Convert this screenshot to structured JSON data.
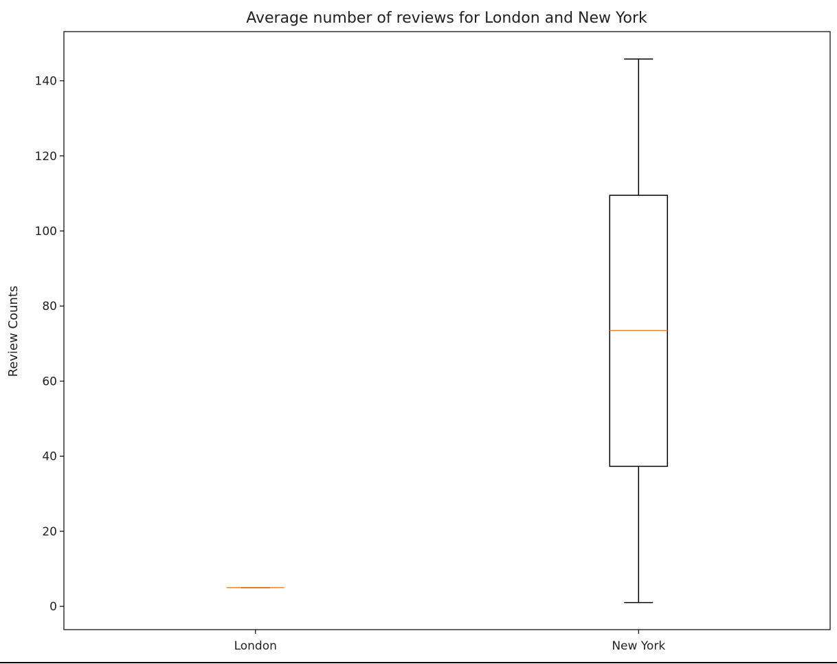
{
  "chart_data": {
    "type": "boxplot",
    "title": "Average number of reviews for London and New York",
    "xlabel": "",
    "ylabel": "Review Counts",
    "categories": [
      "London",
      "New York"
    ],
    "boxes": [
      {
        "category": "London",
        "whisker_low": 5,
        "q1": 5,
        "median": 5,
        "q3": 5,
        "whisker_high": 5
      },
      {
        "category": "New York",
        "whisker_low": 1,
        "q1": 37.3,
        "median": 73.5,
        "q3": 109.5,
        "whisker_high": 145.8
      }
    ],
    "ylim": [
      -6.2,
      153.1
    ],
    "yticks": [
      0,
      20,
      40,
      60,
      80,
      100,
      120,
      140
    ],
    "grid": false,
    "colors": {
      "box": "#000000",
      "median": "#ff7f0e",
      "axes": "#000000",
      "text": "#222222"
    }
  }
}
